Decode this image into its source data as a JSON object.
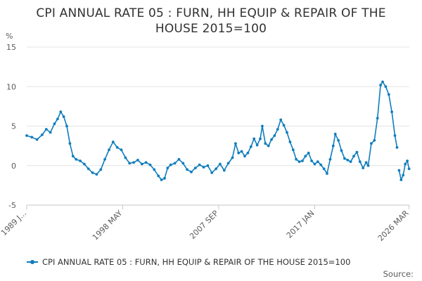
{
  "title": "CPI ANNUAL RATE 05 : FURN, HH EQUIP & REPAIR OF THE HOUSE 2015=100",
  "source_label": "Source:",
  "series_color": "#0f7dbd",
  "chart_data": {
    "type": "line",
    "title": "CPI ANNUAL RATE 05 : FURN, HH EQUIP & REPAIR OF THE HOUSE 2015=100",
    "ylabel": "%",
    "xlabel": "",
    "ylim": [
      -5,
      15
    ],
    "yticks": [
      -5,
      0,
      5,
      10,
      15
    ],
    "xlim": [
      1989.0,
      2026.2
    ],
    "xtick_labels": [
      {
        "x": 1989.0,
        "label": "1989 J..."
      },
      {
        "x": 1998.33,
        "label": "1998 MAY"
      },
      {
        "x": 2007.67,
        "label": "2007 SEP"
      },
      {
        "x": 2017.0,
        "label": "2017 JAN"
      },
      {
        "x": 2026.17,
        "label": "2026 MAR"
      }
    ],
    "grid": true,
    "legend_position": "bottom",
    "series": [
      {
        "name": "CPI ANNUAL RATE 05 : FURN, HH EQUIP & REPAIR OF THE HOUSE 2015=100",
        "points": [
          [
            1989.0,
            3.8
          ],
          [
            1989.5,
            3.6
          ],
          [
            1990.0,
            3.3
          ],
          [
            1990.5,
            3.9
          ],
          [
            1990.9,
            4.6
          ],
          [
            1991.3,
            4.2
          ],
          [
            1991.7,
            5.3
          ],
          [
            1992.0,
            5.9
          ],
          [
            1992.3,
            6.8
          ],
          [
            1992.6,
            6.2
          ],
          [
            1992.9,
            5.0
          ],
          [
            1993.2,
            2.8
          ],
          [
            1993.5,
            1.2
          ],
          [
            1993.8,
            0.8
          ],
          [
            1994.2,
            0.6
          ],
          [
            1994.6,
            0.2
          ],
          [
            1995.0,
            -0.4
          ],
          [
            1995.4,
            -0.9
          ],
          [
            1995.8,
            -1.1
          ],
          [
            1996.2,
            -0.5
          ],
          [
            1996.6,
            0.8
          ],
          [
            1997.0,
            2.0
          ],
          [
            1997.4,
            3.0
          ],
          [
            1997.8,
            2.3
          ],
          [
            1998.2,
            2.0
          ],
          [
            1998.6,
            1.0
          ],
          [
            1999.0,
            0.3
          ],
          [
            1999.4,
            0.4
          ],
          [
            1999.8,
            0.7
          ],
          [
            2000.2,
            0.2
          ],
          [
            2000.6,
            0.4
          ],
          [
            2001.0,
            0.1
          ],
          [
            2001.4,
            -0.5
          ],
          [
            2001.8,
            -1.3
          ],
          [
            2002.1,
            -1.8
          ],
          [
            2002.4,
            -1.6
          ],
          [
            2002.7,
            -0.3
          ],
          [
            2003.0,
            0.1
          ],
          [
            2003.4,
            0.3
          ],
          [
            2003.8,
            0.8
          ],
          [
            2004.2,
            0.3
          ],
          [
            2004.6,
            -0.5
          ],
          [
            2005.0,
            -0.8
          ],
          [
            2005.4,
            -0.3
          ],
          [
            2005.8,
            0.1
          ],
          [
            2006.2,
            -0.2
          ],
          [
            2006.6,
            0.0
          ],
          [
            2007.0,
            -0.9
          ],
          [
            2007.4,
            -0.4
          ],
          [
            2007.8,
            0.2
          ],
          [
            2008.2,
            -0.6
          ],
          [
            2008.6,
            0.3
          ],
          [
            2009.0,
            1.0
          ],
          [
            2009.3,
            2.8
          ],
          [
            2009.6,
            1.6
          ],
          [
            2009.9,
            1.8
          ],
          [
            2010.2,
            1.2
          ],
          [
            2010.5,
            1.6
          ],
          [
            2010.8,
            2.4
          ],
          [
            2011.1,
            3.4
          ],
          [
            2011.4,
            2.6
          ],
          [
            2011.7,
            3.4
          ],
          [
            2011.9,
            5.0
          ],
          [
            2012.2,
            2.8
          ],
          [
            2012.5,
            2.5
          ],
          [
            2012.8,
            3.3
          ],
          [
            2013.1,
            3.8
          ],
          [
            2013.4,
            4.6
          ],
          [
            2013.7,
            5.8
          ],
          [
            2014.0,
            5.1
          ],
          [
            2014.3,
            4.2
          ],
          [
            2014.6,
            3.0
          ],
          [
            2014.9,
            2.0
          ],
          [
            2015.2,
            0.8
          ],
          [
            2015.5,
            0.5
          ],
          [
            2015.8,
            0.6
          ],
          [
            2016.1,
            1.2
          ],
          [
            2016.4,
            1.6
          ],
          [
            2016.7,
            0.6
          ],
          [
            2017.0,
            0.2
          ],
          [
            2017.3,
            0.5
          ],
          [
            2017.6,
            0.1
          ],
          [
            2017.9,
            -0.4
          ],
          [
            2018.2,
            -1.0
          ],
          [
            2018.5,
            0.8
          ],
          [
            2018.8,
            2.5
          ],
          [
            2019.0,
            4.0
          ],
          [
            2019.3,
            3.2
          ],
          [
            2019.6,
            1.9
          ],
          [
            2019.9,
            0.9
          ],
          [
            2020.2,
            0.7
          ],
          [
            2020.5,
            0.5
          ],
          [
            2020.8,
            1.2
          ],
          [
            2021.1,
            1.7
          ],
          [
            2021.4,
            0.5
          ],
          [
            2021.7,
            -0.3
          ],
          [
            2022.0,
            0.4
          ],
          [
            2022.2,
            0.0
          ],
          [
            2022.5,
            2.8
          ],
          [
            2022.8,
            3.2
          ],
          [
            2023.1,
            6.0
          ],
          [
            2023.4,
            10.2
          ],
          [
            2023.6,
            10.6
          ],
          [
            2023.9,
            10.0
          ],
          [
            2024.2,
            9.0
          ],
          [
            2024.5,
            6.8
          ],
          [
            2024.8,
            3.8
          ],
          [
            2025.0,
            2.3
          ]
        ],
        "points_segment_2": [
          [
            2025.2,
            -0.6
          ],
          [
            2025.4,
            -1.8
          ],
          [
            2025.6,
            -1.2
          ],
          [
            2025.8,
            0.2
          ],
          [
            2026.0,
            0.6
          ],
          [
            2026.17,
            -0.4
          ]
        ]
      }
    ]
  }
}
